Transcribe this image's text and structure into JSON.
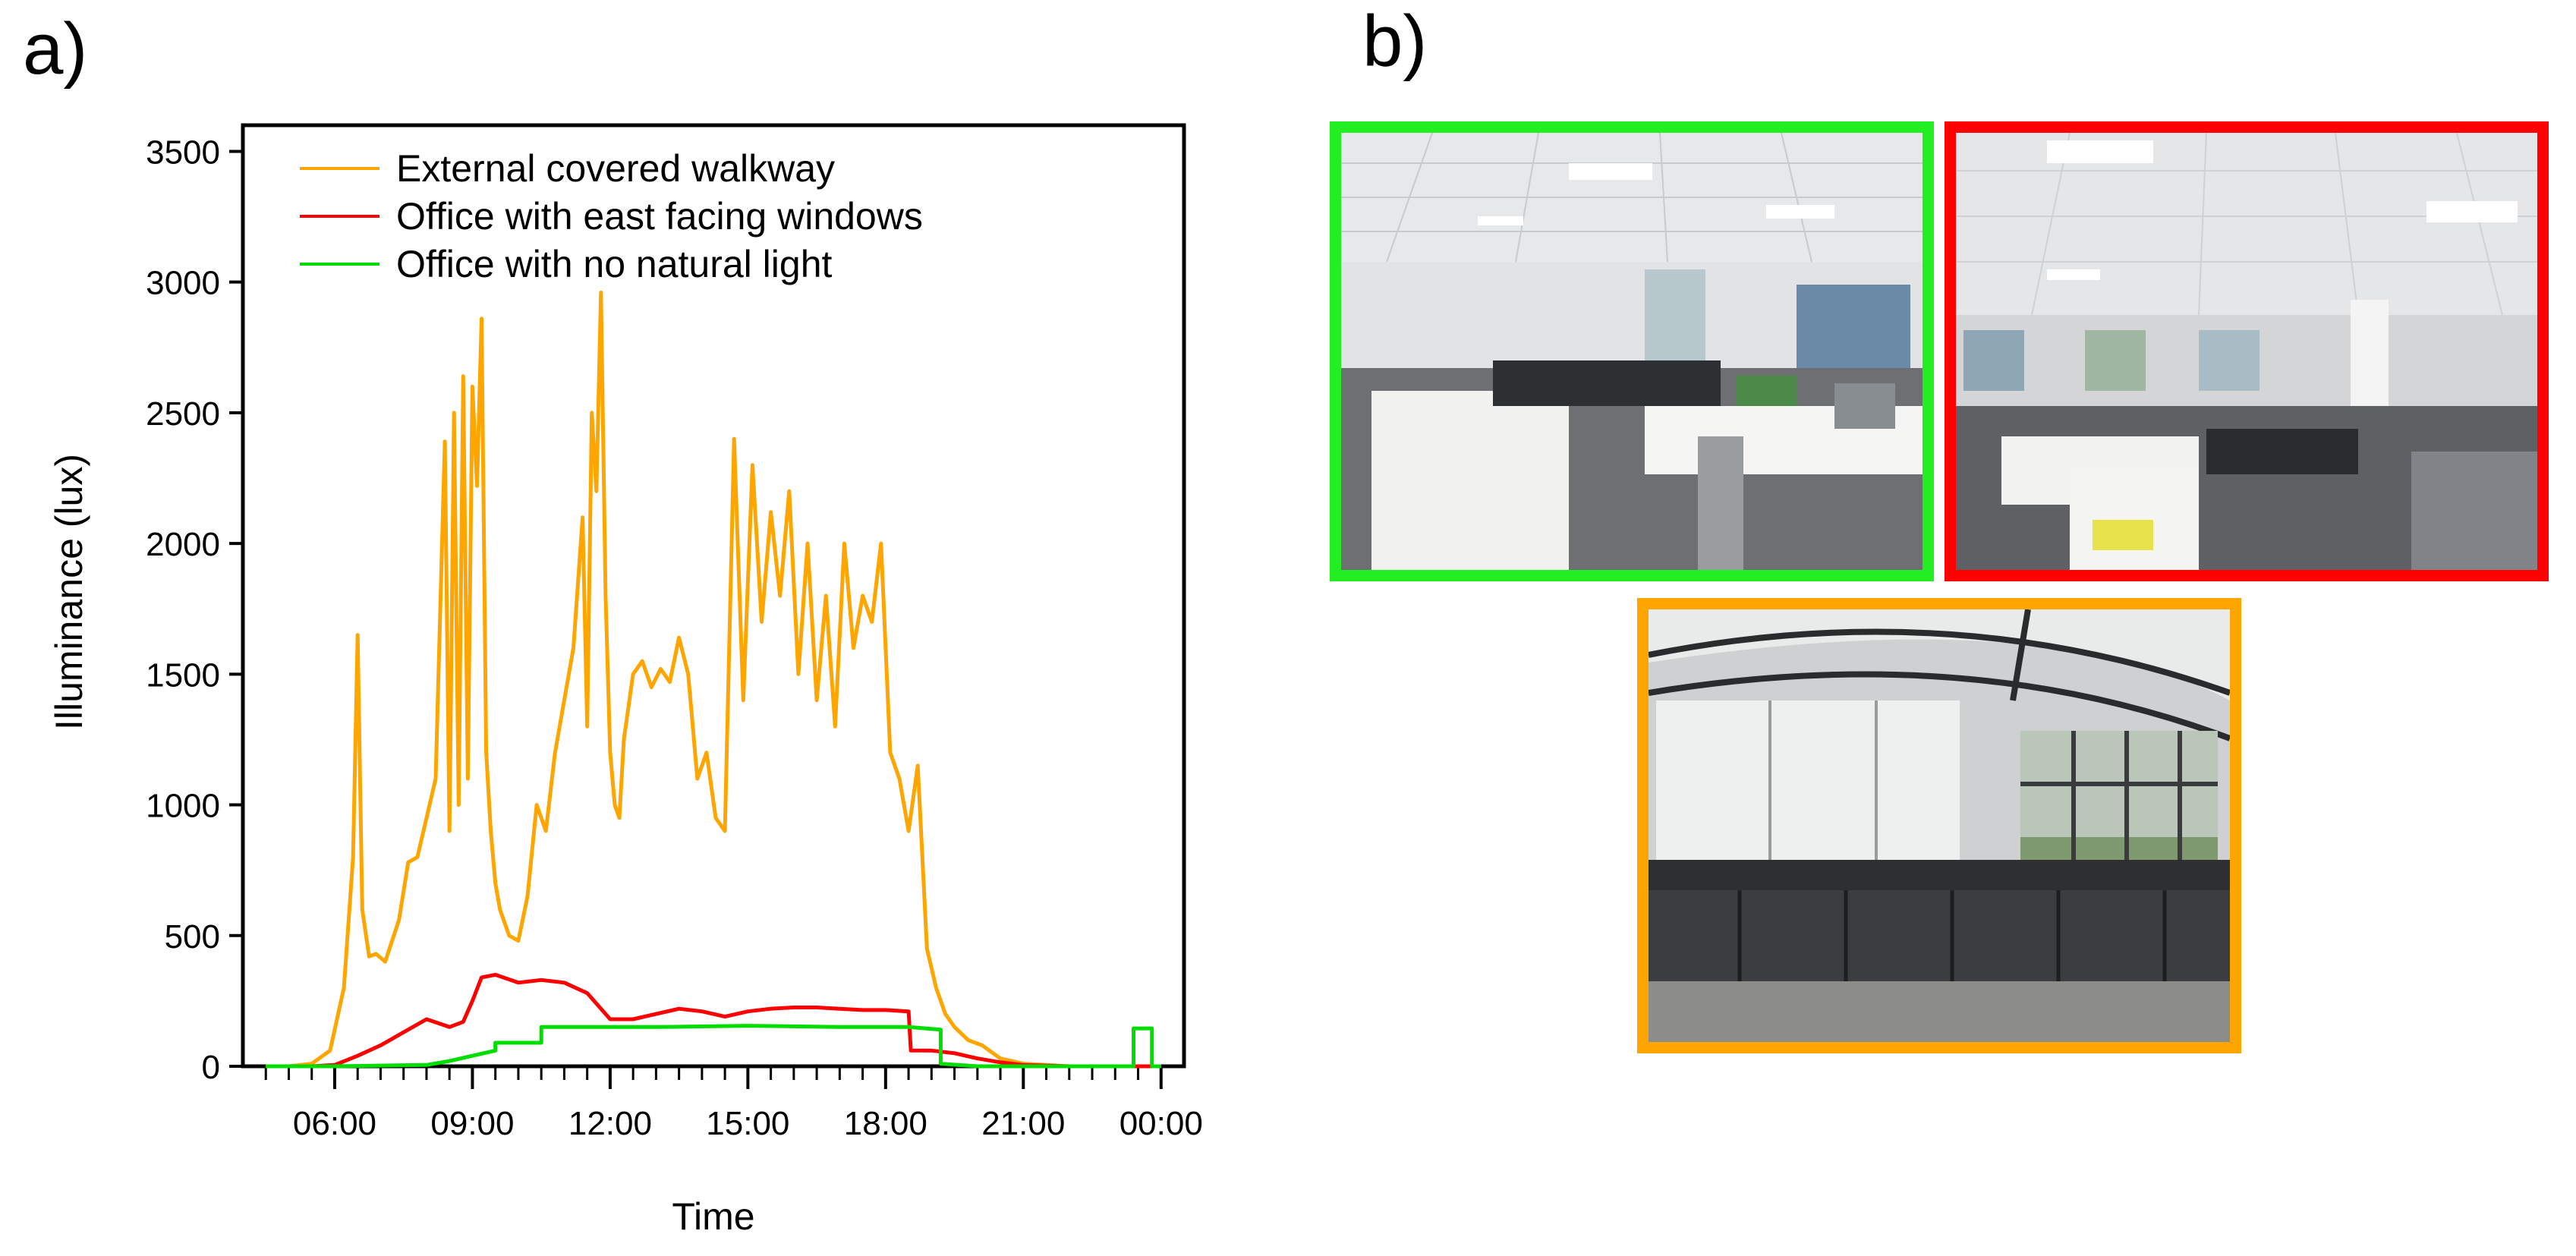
{
  "panels": {
    "a_label": "a)",
    "b_label": "b)"
  },
  "chart_data": {
    "type": "line",
    "title": "",
    "xlabel": "Time",
    "ylabel": "Illuminance (lux)",
    "xlim": [
      4.0,
      24.5
    ],
    "ylim": [
      0,
      3600
    ],
    "x_ticks": [
      6,
      9,
      12,
      15,
      18,
      21,
      24
    ],
    "x_tick_labels": [
      "06:00",
      "09:00",
      "12:00",
      "15:00",
      "18:00",
      "21:00",
      "00:00"
    ],
    "y_ticks": [
      0,
      500,
      1000,
      1500,
      2000,
      2500,
      3000,
      3500
    ],
    "y_tick_labels": [
      "0",
      "500",
      "1000",
      "1500",
      "2000",
      "2500",
      "3000",
      "3500"
    ],
    "legend_position": "top-left",
    "grid": false,
    "series": [
      {
        "name": "External covered walkway",
        "color": "#FFA500",
        "x": [
          4.5,
          5.0,
          5.5,
          5.9,
          6.2,
          6.4,
          6.5,
          6.6,
          6.75,
          6.9,
          7.1,
          7.4,
          7.6,
          7.8,
          8.0,
          8.2,
          8.4,
          8.5,
          8.6,
          8.7,
          8.8,
          8.9,
          9.0,
          9.1,
          9.2,
          9.3,
          9.4,
          9.5,
          9.6,
          9.8,
          10.0,
          10.2,
          10.4,
          10.6,
          10.8,
          11.0,
          11.2,
          11.4,
          11.5,
          11.6,
          11.7,
          11.8,
          11.9,
          12.0,
          12.1,
          12.2,
          12.3,
          12.5,
          12.7,
          12.9,
          13.1,
          13.3,
          13.5,
          13.7,
          13.9,
          14.1,
          14.3,
          14.5,
          14.7,
          14.9,
          15.1,
          15.3,
          15.5,
          15.7,
          15.9,
          16.1,
          16.3,
          16.5,
          16.7,
          16.9,
          17.1,
          17.3,
          17.5,
          17.7,
          17.9,
          18.1,
          18.3,
          18.5,
          18.7,
          18.9,
          19.1,
          19.3,
          19.5,
          19.8,
          20.1,
          20.5,
          21.0,
          21.5,
          22.0,
          23.0,
          24.0
        ],
        "y": [
          0,
          0,
          10,
          60,
          300,
          800,
          1650,
          600,
          420,
          430,
          400,
          560,
          780,
          800,
          950,
          1100,
          2390,
          900,
          2500,
          1000,
          2640,
          1100,
          2600,
          2220,
          2860,
          1200,
          900,
          700,
          600,
          500,
          480,
          650,
          1000,
          900,
          1200,
          1400,
          1600,
          2100,
          1300,
          2500,
          2200,
          2960,
          1800,
          1200,
          1000,
          950,
          1250,
          1500,
          1550,
          1450,
          1520,
          1470,
          1640,
          1500,
          1100,
          1200,
          950,
          900,
          2400,
          1400,
          2300,
          1700,
          2120,
          1800,
          2200,
          1500,
          2000,
          1400,
          1800,
          1300,
          2000,
          1600,
          1800,
          1700,
          2000,
          1200,
          1100,
          900,
          1150,
          450,
          300,
          200,
          150,
          100,
          80,
          30,
          10,
          5,
          0,
          0,
          0
        ]
      },
      {
        "name": "Office with east facing windows",
        "color": "#FF0000",
        "x": [
          4.5,
          5.5,
          6.0,
          6.5,
          7.0,
          7.5,
          8.0,
          8.5,
          8.8,
          9.0,
          9.2,
          9.5,
          10.0,
          10.5,
          11.0,
          11.5,
          12.0,
          12.5,
          13.0,
          13.5,
          14.0,
          14.5,
          15.0,
          15.5,
          16.0,
          16.5,
          17.0,
          17.5,
          18.0,
          18.5,
          18.55,
          19.0,
          19.5,
          20.0,
          20.5,
          21.0,
          22.0,
          23.0,
          24.0
        ],
        "y": [
          0,
          0,
          5,
          40,
          80,
          130,
          180,
          150,
          170,
          250,
          340,
          350,
          320,
          330,
          320,
          280,
          180,
          180,
          200,
          220,
          210,
          190,
          210,
          220,
          225,
          225,
          220,
          215,
          215,
          210,
          60,
          60,
          50,
          30,
          15,
          5,
          0,
          0,
          0
        ]
      },
      {
        "name": "Office with no natural light",
        "color": "#00DD00",
        "x": [
          4.5,
          6.0,
          8.0,
          8.5,
          9.0,
          9.5,
          9.5,
          10.5,
          10.5,
          11.5,
          13.0,
          15.0,
          17.0,
          18.5,
          19.2,
          19.2,
          20.0,
          23.4,
          23.4,
          23.8,
          23.8,
          24.0
        ],
        "y": [
          0,
          0,
          5,
          20,
          40,
          60,
          90,
          90,
          150,
          150,
          150,
          155,
          150,
          150,
          140,
          10,
          0,
          0,
          145,
          145,
          0,
          0
        ]
      }
    ]
  },
  "photos": [
    {
      "description_label": "",
      "border_color": "#22EE22"
    },
    {
      "description_label": "",
      "border_color": "#FF0000"
    },
    {
      "description_label": "",
      "border_color": "#FFA500"
    }
  ]
}
